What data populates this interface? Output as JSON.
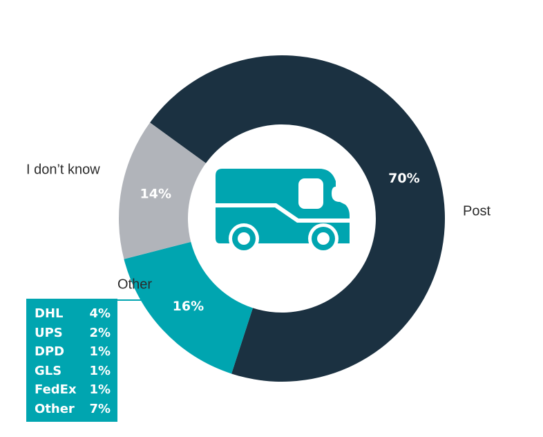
{
  "chart_data": {
    "type": "pie",
    "donut": true,
    "slices": [
      {
        "label": "Post",
        "value": 70,
        "value_label": "70%",
        "color": "#1b3141"
      },
      {
        "label": "Other",
        "value": 16,
        "value_label": "16%",
        "color": "#00a5b0"
      },
      {
        "label": "I don’t know",
        "value": 14,
        "value_label": "14%",
        "color": "#b1b4ba"
      }
    ],
    "breakdown": {
      "of": "Other",
      "items": [
        {
          "label": "DHL",
          "value": 4,
          "value_label": "4%"
        },
        {
          "label": "UPS",
          "value": 2,
          "value_label": "2%"
        },
        {
          "label": "DPD",
          "value": 1,
          "value_label": "1%"
        },
        {
          "label": "GLS",
          "value": 1,
          "value_label": "1%"
        },
        {
          "label": "FedEx",
          "value": 1,
          "value_label": "1%"
        },
        {
          "label": "Other",
          "value": 7,
          "value_label": "7%"
        }
      ]
    }
  },
  "center_icon": "delivery-van-icon",
  "colors": {
    "icon": "#00a5b0",
    "breakdown_bg": "#00a5b0",
    "leader_line": "#00a5b0"
  }
}
